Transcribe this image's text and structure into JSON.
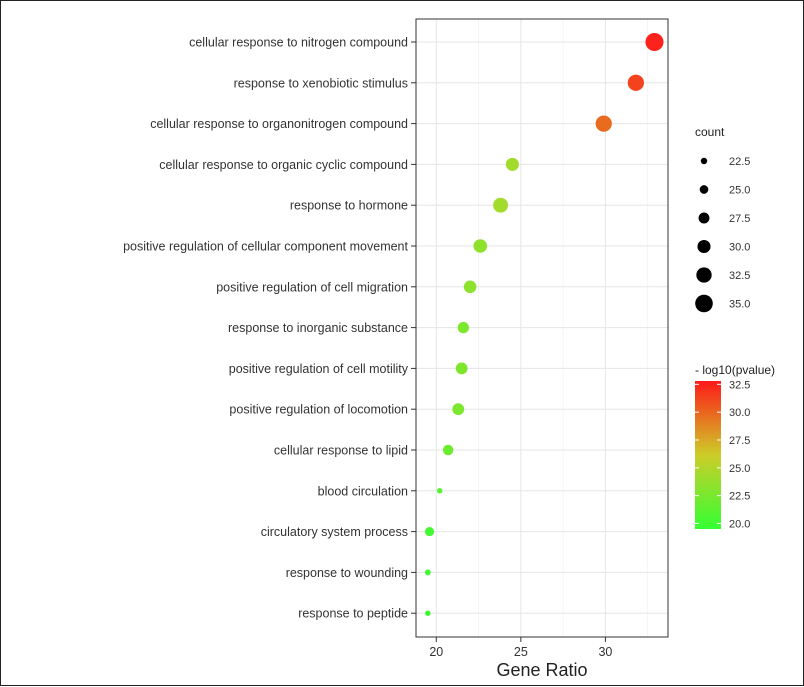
{
  "chart_data": {
    "type": "scatter",
    "title": "",
    "xlabel": "Gene Ratio",
    "ylabel": "",
    "xlim": [
      18.8,
      33.7
    ],
    "x_ticks": [
      20,
      25,
      30
    ],
    "grid": true,
    "terms": [
      {
        "name": "cellular response to nitrogen compound",
        "x": 32.9,
        "count": 35.5,
        "pvalue": 32.5
      },
      {
        "name": "response to xenobiotic stimulus",
        "x": 31.8,
        "count": 33.5,
        "pvalue": 31.3
      },
      {
        "name": "cellular response to organonitrogen compound",
        "x": 29.9,
        "count": 33.5,
        "pvalue": 29.8
      },
      {
        "name": "cellular response to organic cyclic compound",
        "x": 24.5,
        "count": 30.0,
        "pvalue": 24.3
      },
      {
        "name": "response to hormone",
        "x": 23.8,
        "count": 32.0,
        "pvalue": 24.3
      },
      {
        "name": "positive regulation of cellular component movement",
        "x": 22.6,
        "count": 30.5,
        "pvalue": 23.5
      },
      {
        "name": "positive regulation of cell migration",
        "x": 22.0,
        "count": 29.5,
        "pvalue": 23.4
      },
      {
        "name": "response to inorganic substance",
        "x": 21.6,
        "count": 28.0,
        "pvalue": 22.6
      },
      {
        "name": "positive regulation of cell motility",
        "x": 21.5,
        "count": 28.5,
        "pvalue": 22.8
      },
      {
        "name": "positive regulation of locomotion",
        "x": 21.3,
        "count": 28.5,
        "pvalue": 22.6
      },
      {
        "name": "cellular response to lipid",
        "x": 20.7,
        "count": 27.0,
        "pvalue": 21.9
      },
      {
        "name": "blood circulation",
        "x": 20.2,
        "count": 21.5,
        "pvalue": 21.0
      },
      {
        "name": "circulatory system process",
        "x": 19.6,
        "count": 25.5,
        "pvalue": 20.2
      },
      {
        "name": "response to wounding",
        "x": 19.5,
        "count": 22.0,
        "pvalue": 20.1
      },
      {
        "name": "response to peptide",
        "x": 19.5,
        "count": 21.5,
        "pvalue": 20.0
      }
    ],
    "legend": {
      "placement": "right",
      "size_title": "count",
      "size_values": [
        22.5,
        25.0,
        27.5,
        30.0,
        32.5,
        35.0
      ],
      "size_labels": [
        "22.5",
        "25.0",
        "27.5",
        "30.0",
        "32.5",
        "35.0"
      ],
      "color_title": "- log10(pvalue)",
      "color_range": [
        19.5,
        32.8
      ],
      "color_ticks": [
        20.0,
        22.5,
        25.0,
        27.5,
        30.0,
        32.5
      ],
      "color_tick_labels": [
        "20.0",
        "22.5",
        "25.0",
        "27.5",
        "30.0",
        "32.5"
      ],
      "color_low": "#33ff33",
      "color_high": "#ff1a1a"
    },
    "colors": {
      "panel_bg": "#ffffff",
      "grid": "#e6e6e6",
      "panel_border": "#333333"
    }
  }
}
